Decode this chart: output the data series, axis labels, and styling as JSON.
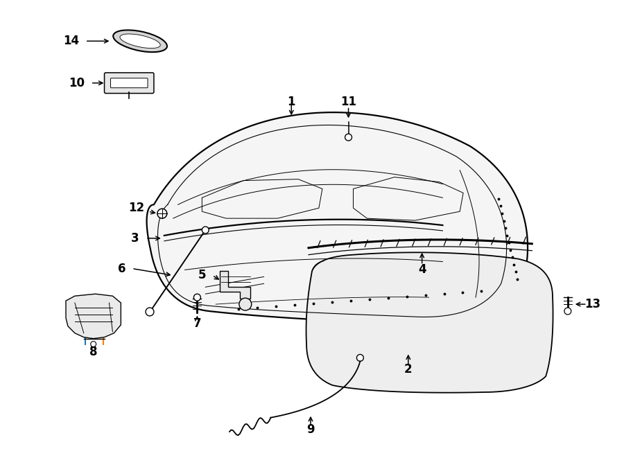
{
  "bg_color": "#ffffff",
  "line_color": "#000000",
  "fig_width": 9.0,
  "fig_height": 6.61,
  "label_fontsize": 12
}
